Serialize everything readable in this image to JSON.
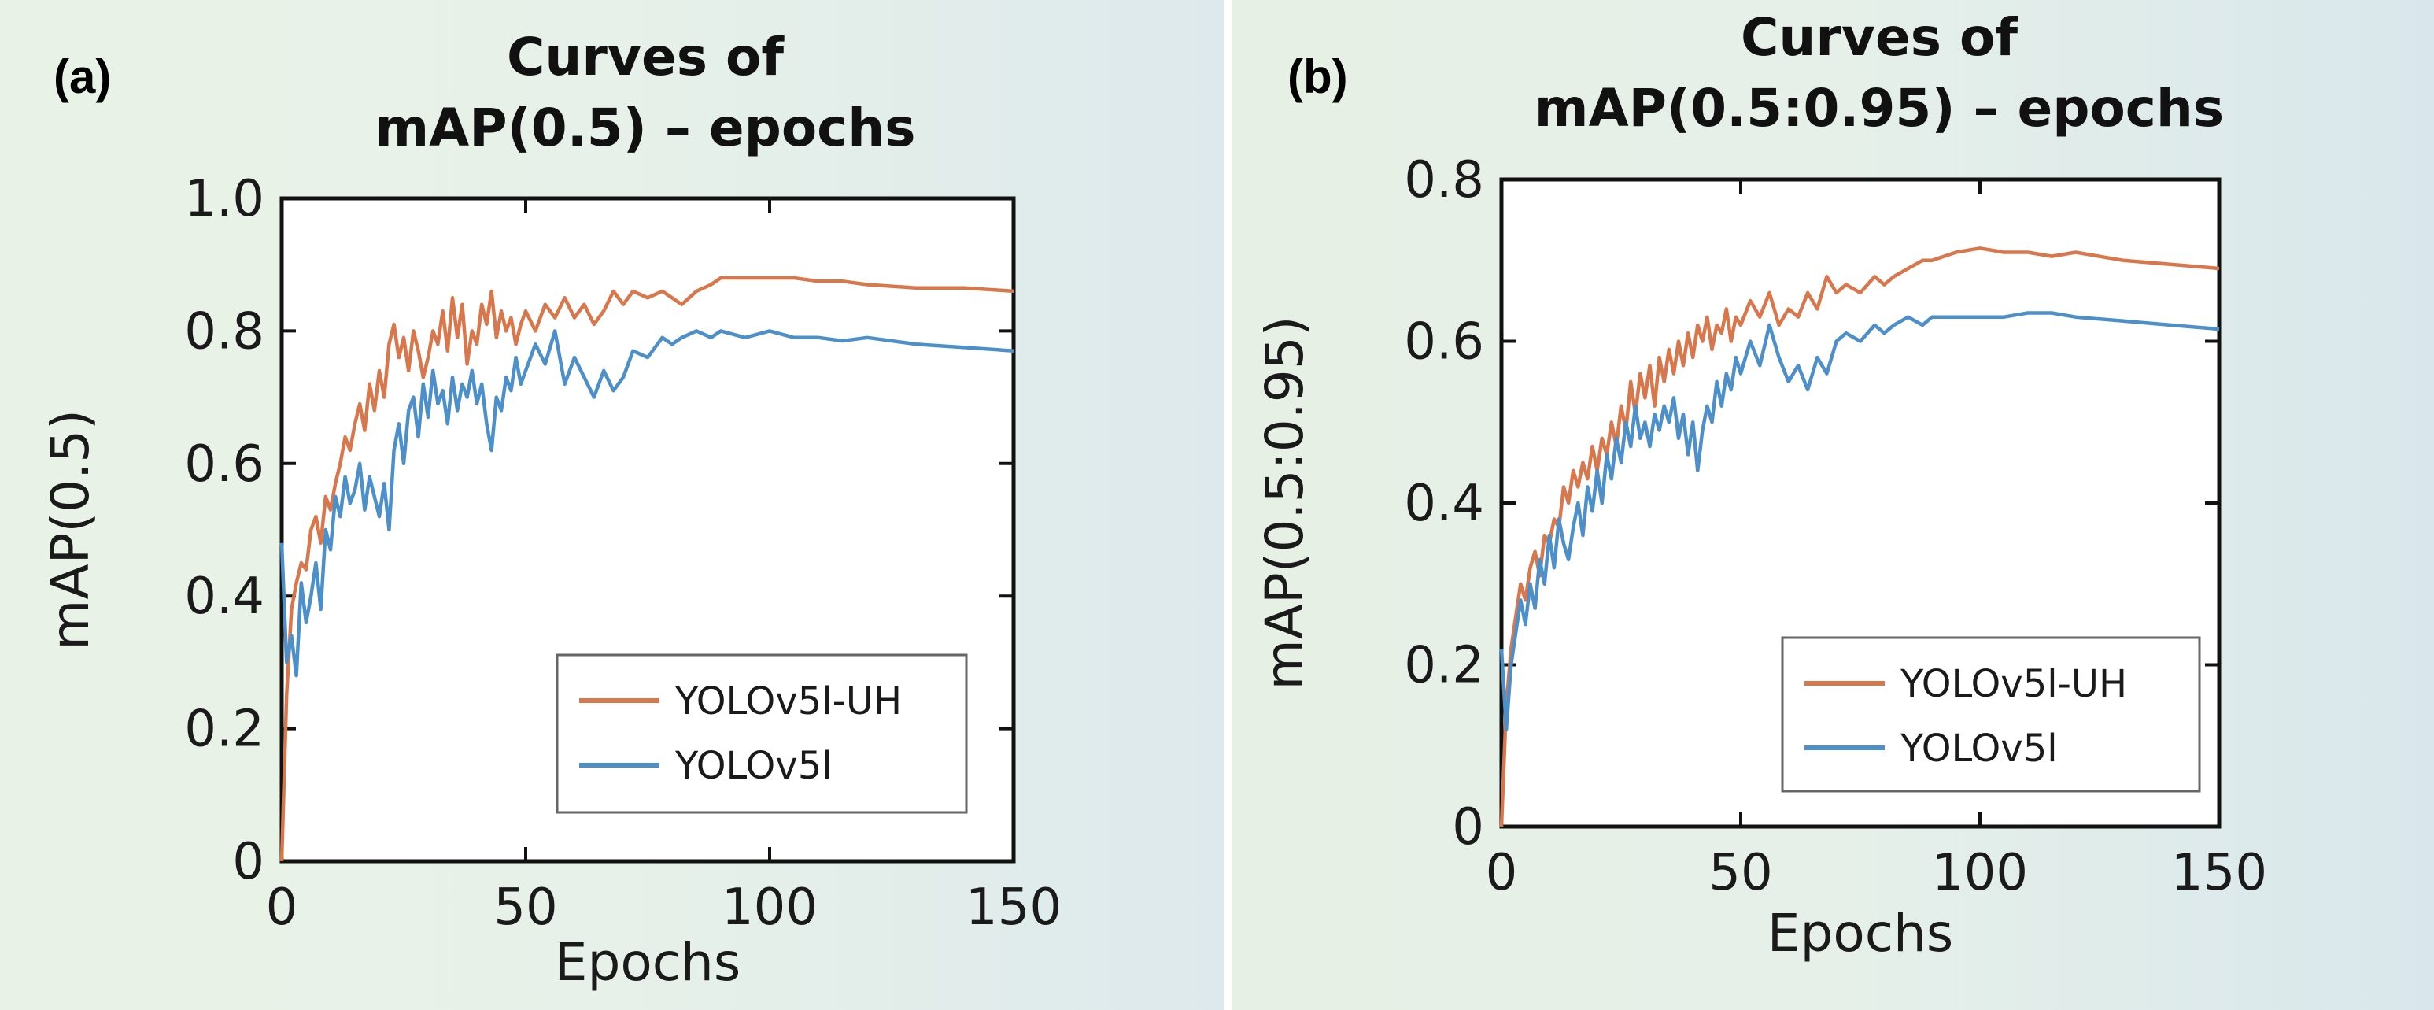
{
  "chart_data": [
    {
      "type": "line",
      "panel_label": "(a)",
      "title": [
        "Curves of",
        "mAP(0.5) – epochs"
      ],
      "xlabel": "Epochs",
      "ylabel": "mAP(0.5)",
      "xlim": [
        0,
        150
      ],
      "ylim": [
        0,
        1.0
      ],
      "xticks": [
        0,
        50,
        100,
        150
      ],
      "xtick_labels": [
        "0",
        "50",
        "100",
        "150"
      ],
      "yticks": [
        0,
        0.2,
        0.4,
        0.6,
        0.8,
        1.0
      ],
      "ytick_labels": [
        "0",
        "0.2",
        "0.4",
        "0.6",
        "0.8",
        "1.0"
      ],
      "legend_position": "bottom-right",
      "series": [
        {
          "name": "YOLOv5l-UH",
          "color": "#d9774c",
          "x": [
            0,
            1,
            2,
            3,
            4,
            5,
            6,
            7,
            8,
            9,
            10,
            11,
            12,
            13,
            14,
            15,
            16,
            17,
            18,
            19,
            20,
            21,
            22,
            23,
            24,
            25,
            26,
            27,
            28,
            29,
            30,
            31,
            32,
            33,
            34,
            35,
            36,
            37,
            38,
            39,
            40,
            41,
            42,
            43,
            44,
            45,
            46,
            47,
            48,
            49,
            50,
            52,
            54,
            56,
            58,
            60,
            62,
            64,
            66,
            68,
            70,
            72,
            75,
            78,
            80,
            82,
            85,
            88,
            90,
            95,
            100,
            105,
            110,
            115,
            120,
            130,
            140,
            150
          ],
          "values": [
            0.0,
            0.25,
            0.38,
            0.42,
            0.45,
            0.44,
            0.5,
            0.52,
            0.48,
            0.55,
            0.53,
            0.57,
            0.6,
            0.64,
            0.62,
            0.66,
            0.69,
            0.65,
            0.72,
            0.68,
            0.74,
            0.7,
            0.78,
            0.81,
            0.76,
            0.79,
            0.74,
            0.8,
            0.77,
            0.73,
            0.76,
            0.8,
            0.78,
            0.83,
            0.77,
            0.85,
            0.79,
            0.84,
            0.75,
            0.8,
            0.78,
            0.84,
            0.81,
            0.86,
            0.79,
            0.83,
            0.8,
            0.82,
            0.78,
            0.81,
            0.83,
            0.8,
            0.84,
            0.82,
            0.85,
            0.82,
            0.84,
            0.81,
            0.83,
            0.86,
            0.84,
            0.86,
            0.85,
            0.86,
            0.85,
            0.84,
            0.86,
            0.87,
            0.88,
            0.88,
            0.88,
            0.88,
            0.875,
            0.875,
            0.87,
            0.865,
            0.865,
            0.86
          ]
        },
        {
          "name": "YOLOv5l",
          "color": "#4c8fc9",
          "x": [
            0,
            1,
            2,
            3,
            4,
            5,
            6,
            7,
            8,
            9,
            10,
            11,
            12,
            13,
            14,
            15,
            16,
            17,
            18,
            19,
            20,
            21,
            22,
            23,
            24,
            25,
            26,
            27,
            28,
            29,
            30,
            31,
            32,
            33,
            34,
            35,
            36,
            37,
            38,
            39,
            40,
            41,
            42,
            43,
            44,
            45,
            46,
            47,
            48,
            49,
            50,
            52,
            54,
            56,
            58,
            60,
            62,
            64,
            66,
            68,
            70,
            72,
            75,
            78,
            80,
            82,
            85,
            88,
            90,
            95,
            100,
            105,
            110,
            115,
            120,
            130,
            140,
            150
          ],
          "values": [
            0.48,
            0.3,
            0.34,
            0.28,
            0.42,
            0.36,
            0.4,
            0.45,
            0.38,
            0.5,
            0.47,
            0.55,
            0.52,
            0.58,
            0.54,
            0.56,
            0.6,
            0.53,
            0.58,
            0.55,
            0.52,
            0.57,
            0.5,
            0.62,
            0.66,
            0.6,
            0.68,
            0.7,
            0.64,
            0.72,
            0.67,
            0.74,
            0.69,
            0.71,
            0.66,
            0.73,
            0.68,
            0.72,
            0.7,
            0.74,
            0.69,
            0.72,
            0.66,
            0.62,
            0.7,
            0.68,
            0.73,
            0.71,
            0.76,
            0.72,
            0.74,
            0.78,
            0.75,
            0.8,
            0.72,
            0.76,
            0.73,
            0.7,
            0.74,
            0.71,
            0.73,
            0.77,
            0.76,
            0.79,
            0.78,
            0.79,
            0.8,
            0.79,
            0.8,
            0.79,
            0.8,
            0.79,
            0.79,
            0.785,
            0.79,
            0.78,
            0.775,
            0.77
          ]
        }
      ]
    },
    {
      "type": "line",
      "panel_label": "(b)",
      "title": [
        "Curves of",
        "mAP(0.5:0.95) – epochs"
      ],
      "xlabel": "Epochs",
      "ylabel": "mAP(0.5:0.95)",
      "xlim": [
        0,
        150
      ],
      "ylim": [
        0,
        0.8
      ],
      "xticks": [
        0,
        50,
        100,
        150
      ],
      "xtick_labels": [
        "0",
        "50",
        "100",
        "150"
      ],
      "yticks": [
        0,
        0.2,
        0.4,
        0.6,
        0.8
      ],
      "ytick_labels": [
        "0",
        "0.2",
        "0.4",
        "0.6",
        "0.8"
      ],
      "legend_position": "bottom-right",
      "series": [
        {
          "name": "YOLOv5l-UH",
          "color": "#d9774c",
          "x": [
            0,
            1,
            2,
            3,
            4,
            5,
            6,
            7,
            8,
            9,
            10,
            11,
            12,
            13,
            14,
            15,
            16,
            17,
            18,
            19,
            20,
            21,
            22,
            23,
            24,
            25,
            26,
            27,
            28,
            29,
            30,
            31,
            32,
            33,
            34,
            35,
            36,
            37,
            38,
            39,
            40,
            41,
            42,
            43,
            44,
            45,
            46,
            47,
            48,
            49,
            50,
            52,
            54,
            56,
            58,
            60,
            62,
            64,
            66,
            68,
            70,
            72,
            75,
            78,
            80,
            82,
            85,
            88,
            90,
            95,
            100,
            105,
            110,
            115,
            120,
            130,
            140,
            150
          ],
          "values": [
            0.0,
            0.15,
            0.22,
            0.26,
            0.3,
            0.28,
            0.32,
            0.34,
            0.31,
            0.36,
            0.35,
            0.38,
            0.37,
            0.42,
            0.4,
            0.44,
            0.42,
            0.45,
            0.43,
            0.47,
            0.44,
            0.48,
            0.46,
            0.5,
            0.47,
            0.52,
            0.49,
            0.55,
            0.51,
            0.56,
            0.53,
            0.57,
            0.52,
            0.58,
            0.55,
            0.59,
            0.56,
            0.6,
            0.57,
            0.61,
            0.58,
            0.62,
            0.6,
            0.63,
            0.59,
            0.62,
            0.61,
            0.64,
            0.6,
            0.63,
            0.62,
            0.65,
            0.63,
            0.66,
            0.62,
            0.64,
            0.63,
            0.66,
            0.64,
            0.68,
            0.66,
            0.67,
            0.66,
            0.68,
            0.67,
            0.68,
            0.69,
            0.7,
            0.7,
            0.71,
            0.715,
            0.71,
            0.71,
            0.705,
            0.71,
            0.7,
            0.695,
            0.69
          ]
        },
        {
          "name": "YOLOv5l",
          "color": "#4c8fc9",
          "x": [
            0,
            1,
            2,
            3,
            4,
            5,
            6,
            7,
            8,
            9,
            10,
            11,
            12,
            13,
            14,
            15,
            16,
            17,
            18,
            19,
            20,
            21,
            22,
            23,
            24,
            25,
            26,
            27,
            28,
            29,
            30,
            31,
            32,
            33,
            34,
            35,
            36,
            37,
            38,
            39,
            40,
            41,
            42,
            43,
            44,
            45,
            46,
            47,
            48,
            49,
            50,
            52,
            54,
            56,
            58,
            60,
            62,
            64,
            66,
            68,
            70,
            72,
            75,
            78,
            80,
            82,
            85,
            88,
            90,
            95,
            100,
            105,
            110,
            115,
            120,
            130,
            140,
            150
          ],
          "values": [
            0.22,
            0.12,
            0.2,
            0.24,
            0.28,
            0.25,
            0.3,
            0.27,
            0.33,
            0.3,
            0.36,
            0.32,
            0.38,
            0.35,
            0.33,
            0.37,
            0.4,
            0.36,
            0.42,
            0.39,
            0.44,
            0.4,
            0.46,
            0.43,
            0.48,
            0.45,
            0.5,
            0.47,
            0.52,
            0.48,
            0.5,
            0.47,
            0.51,
            0.49,
            0.52,
            0.5,
            0.53,
            0.48,
            0.51,
            0.46,
            0.5,
            0.44,
            0.49,
            0.52,
            0.5,
            0.55,
            0.52,
            0.56,
            0.54,
            0.58,
            0.56,
            0.6,
            0.57,
            0.62,
            0.58,
            0.55,
            0.57,
            0.54,
            0.58,
            0.56,
            0.6,
            0.61,
            0.6,
            0.62,
            0.61,
            0.62,
            0.63,
            0.62,
            0.63,
            0.63,
            0.63,
            0.63,
            0.635,
            0.635,
            0.63,
            0.625,
            0.62,
            0.615
          ]
        }
      ]
    }
  ]
}
